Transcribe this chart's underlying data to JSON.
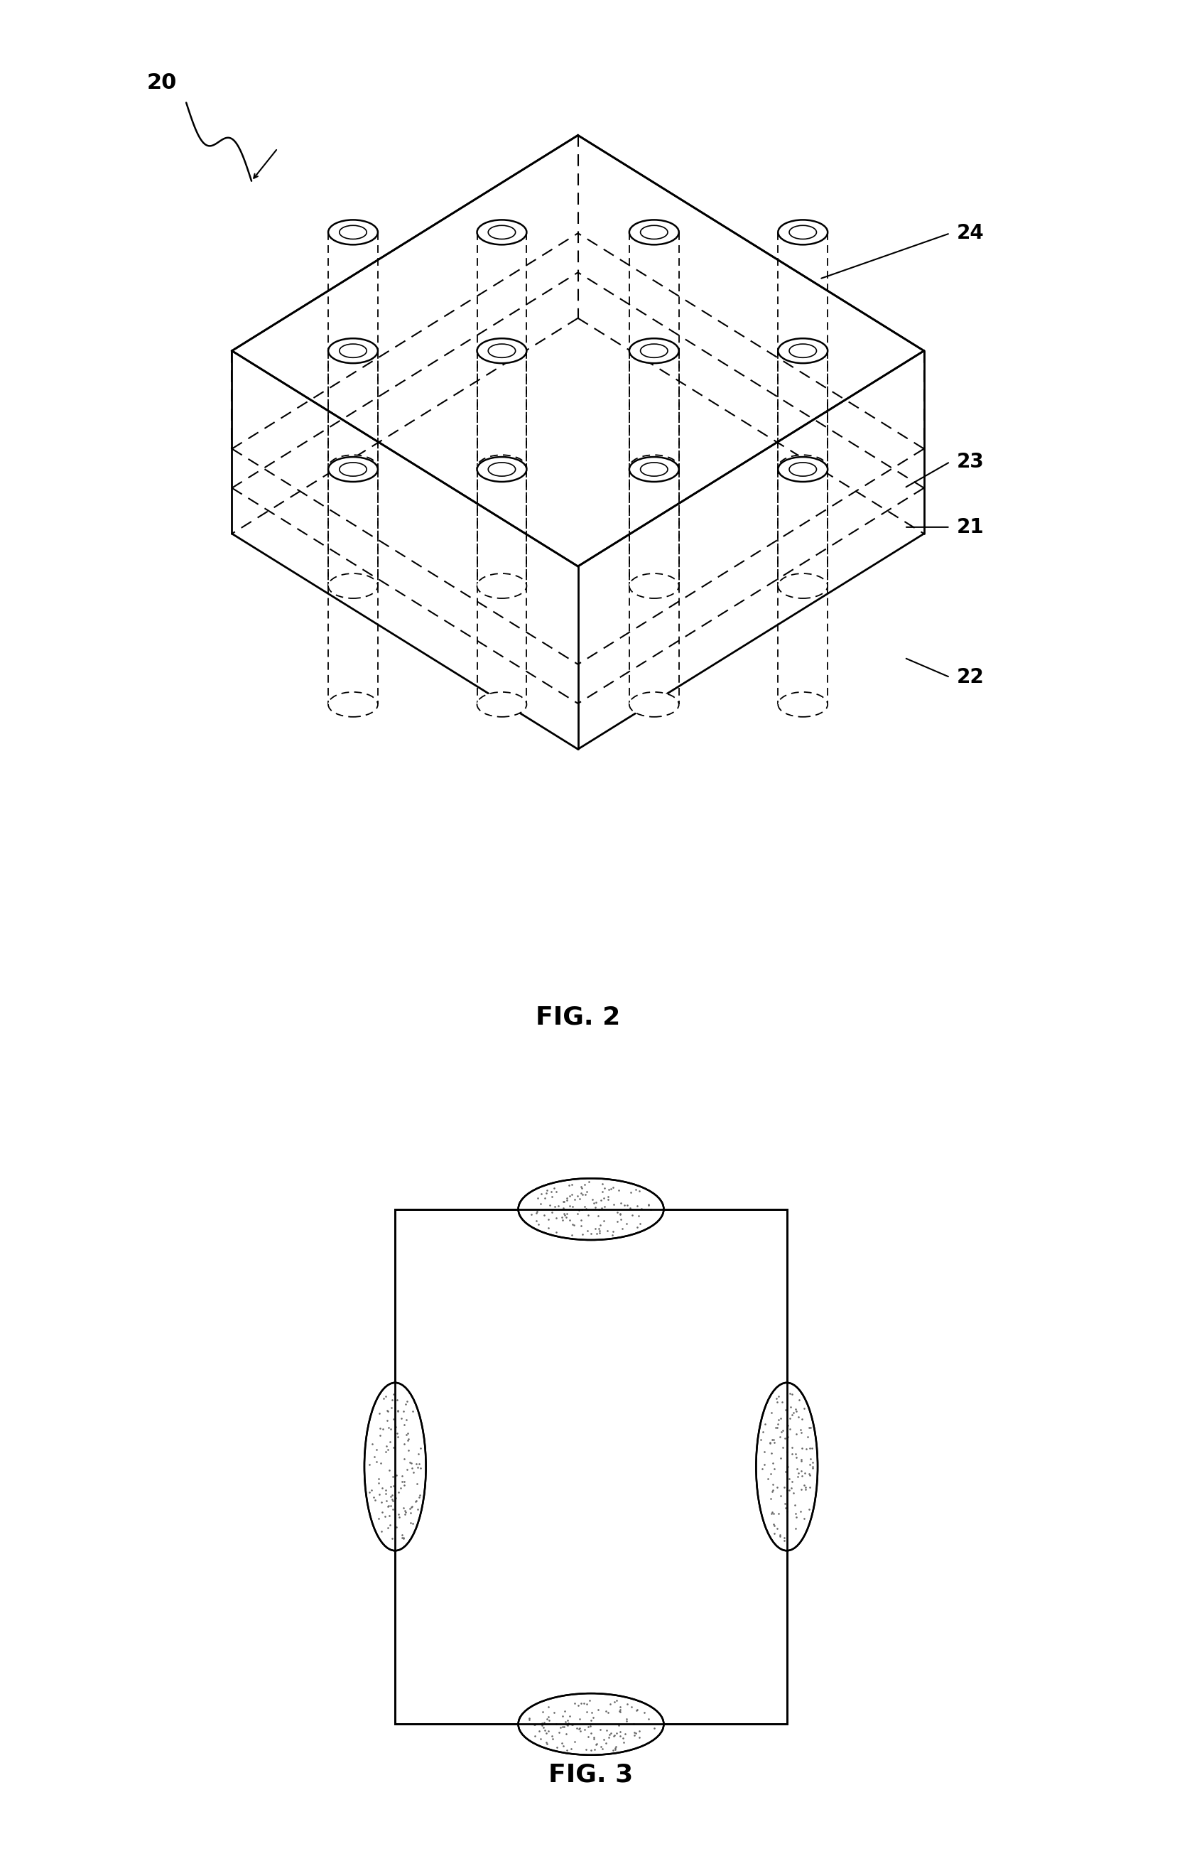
{
  "fig_width": 16.64,
  "fig_height": 26.26,
  "bg_color": "#ffffff",
  "label_20": "20",
  "label_21": "21",
  "label_22": "22",
  "label_23": "23",
  "label_24": "24",
  "fig2_label": "FIG. 2",
  "fig3_label": "FIG. 3",
  "line_color": "#000000",
  "dashed_color": "#000000"
}
